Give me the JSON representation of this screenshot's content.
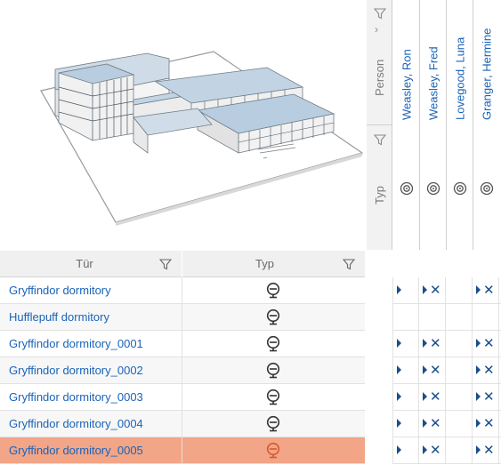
{
  "illustration": {
    "icon": "building-model-icon"
  },
  "column_header": {
    "person_label": "Person",
    "type_label": "Typ",
    "persons": [
      {
        "name": "Weasley, Ron",
        "type_icon": "transponder-icon"
      },
      {
        "name": "Weasley, Fred",
        "type_icon": "transponder-icon"
      },
      {
        "name": "Lovegood, Luna",
        "type_icon": "transponder-icon"
      },
      {
        "name": "Granger, Hermine",
        "type_icon": "transponder-icon"
      }
    ]
  },
  "table": {
    "headers": {
      "door": "Tür",
      "type": "Typ"
    },
    "rows": [
      {
        "door": "Gryffindor dormitory",
        "type_icon": "lock-cylinder-icon",
        "selected": false
      },
      {
        "door": "Hufflepuff dormitory",
        "type_icon": "lock-cylinder-icon",
        "selected": false
      },
      {
        "door": "Gryffindor dormitory_0001",
        "type_icon": "lock-cylinder-icon",
        "selected": false
      },
      {
        "door": "Gryffindor dormitory_0002",
        "type_icon": "lock-cylinder-icon",
        "selected": false
      },
      {
        "door": "Gryffindor dormitory_0003",
        "type_icon": "lock-cylinder-icon",
        "selected": false
      },
      {
        "door": "Gryffindor dormitory_0004",
        "type_icon": "lock-cylinder-icon",
        "selected": false
      },
      {
        "door": "Gryffindor dormitory_0005",
        "type_icon": "lock-cylinder-icon",
        "selected": true
      }
    ]
  },
  "matrix": {
    "rows": [
      [
        "arrow",
        "arrow-x",
        "",
        "arrow-x"
      ],
      [
        "",
        "",
        "",
        ""
      ],
      [
        "arrow",
        "arrow-x",
        "",
        "arrow-x"
      ],
      [
        "arrow",
        "arrow-x",
        "",
        "arrow-x"
      ],
      [
        "arrow",
        "arrow-x",
        "",
        "arrow-x"
      ],
      [
        "arrow",
        "arrow-x",
        "",
        "arrow-x"
      ],
      [
        "arrow",
        "arrow-x",
        "",
        "arrow-x"
      ]
    ]
  },
  "colors": {
    "link": "#1a63b8",
    "selected_row": "#f2a587",
    "selected_icon": "#d9572e",
    "matrix_mark": "#1a4e8a"
  }
}
